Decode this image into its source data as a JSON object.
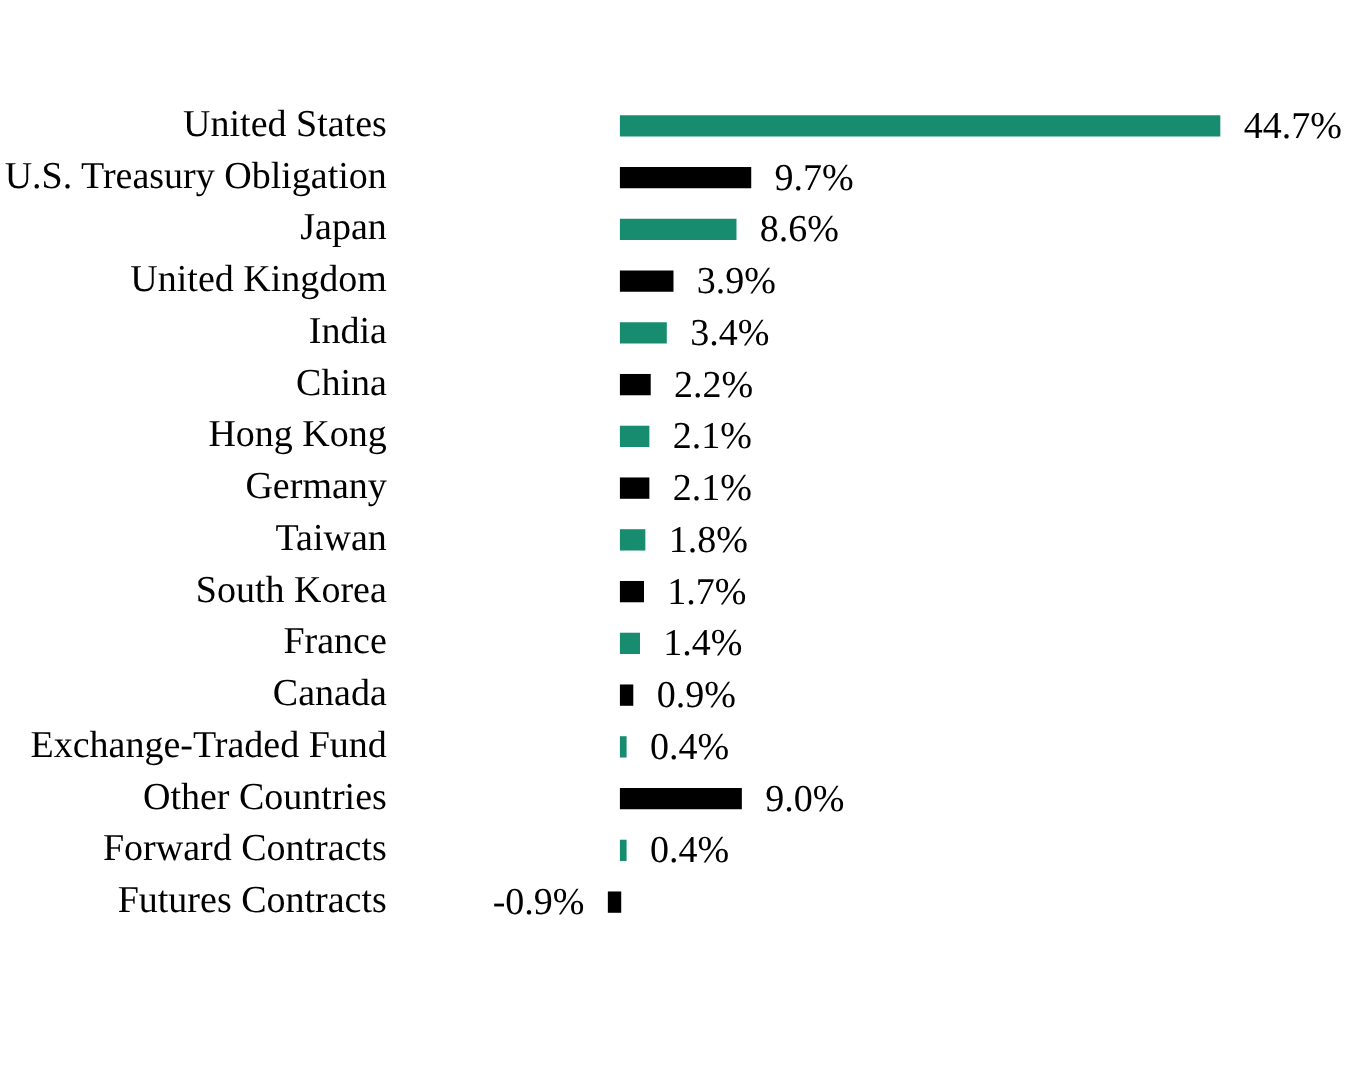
{
  "chart_data": {
    "type": "bar",
    "orientation": "horizontal",
    "categories": [
      "United States",
      "U.S. Treasury Obligation",
      "Japan",
      "United Kingdom",
      "India",
      "China",
      "Hong Kong",
      "Germany",
      "Taiwan",
      "South Korea",
      "France",
      "Canada",
      "Exchange-Traded Fund",
      "Other Countries",
      "Forward Contracts",
      "Futures Contracts"
    ],
    "values": [
      44.7,
      9.7,
      8.6,
      3.9,
      3.4,
      2.2,
      2.1,
      2.1,
      1.8,
      1.7,
      1.4,
      0.9,
      0.4,
      9.0,
      0.4,
      -0.9
    ],
    "colors": [
      "#178c6e",
      "#000000",
      "#178c6e",
      "#000000",
      "#178c6e",
      "#000000",
      "#178c6e",
      "#000000",
      "#178c6e",
      "#000000",
      "#178c6e",
      "#000000",
      "#178c6e",
      "#000000",
      "#178c6e",
      "#000000"
    ],
    "value_labels": [
      "44.7%",
      "9.7%",
      "8.6%",
      "3.9%",
      "3.4%",
      "2.2%",
      "2.1%",
      "2.1%",
      "1.8%",
      "1.7%",
      "1.4%",
      "0.9%",
      "0.4%",
      "9.0%",
      "0.4%",
      "-0.9%"
    ],
    "legend": false
  }
}
